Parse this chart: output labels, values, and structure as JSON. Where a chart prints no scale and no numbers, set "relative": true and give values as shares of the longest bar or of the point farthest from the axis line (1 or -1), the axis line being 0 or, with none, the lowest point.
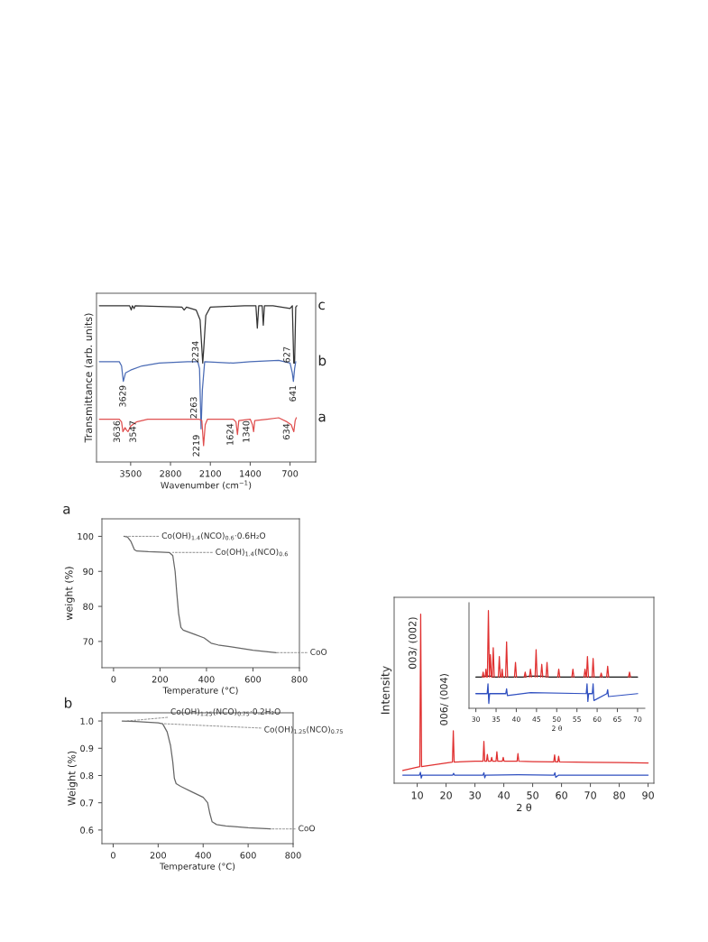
{
  "chart_data": [
    {
      "type": "line",
      "relative": true,
      "xlabel": "Wavenumber (cm$^{−1}$)",
      "ylabel": "Transmittance (arb. units)",
      "xlim": [
        4100,
        250
      ],
      "xticks": [
        3500,
        2800,
        2100,
        1400,
        700
      ],
      "tick_labels": "x",
      "series": [
        {
          "name": "c",
          "color": "#333333",
          "x": [
            4050,
            3520,
            3490,
            3470,
            3440,
            3420,
            2600,
            2560,
            2520,
            2350,
            2280,
            2250,
            2234,
            2215,
            2180,
            2100,
            1500,
            1300,
            1275,
            1250,
            1190,
            1170,
            1150,
            1000,
            700,
            660,
            635,
            620,
            600,
            580
          ],
          "values": [
            1.0,
            1.0,
            0.973,
            1.0,
            0.982,
            1.0,
            0.991,
            0.973,
            0.991,
            0.973,
            0.91,
            0.731,
            0.633,
            0.731,
            0.937,
            0.991,
            1.0,
            1.0,
            0.857,
            1.0,
            1.0,
            0.875,
            1.0,
            1.0,
            0.982,
            1.0,
            0.633,
            0.633,
            0.991,
            1.0
          ]
        },
        {
          "name": "b",
          "color": "#4a6bb5",
          "x": [
            4050,
            3700,
            3660,
            3629,
            3590,
            3500,
            3300,
            3000,
            2500,
            2320,
            2290,
            2263,
            2240,
            2200,
            1700,
            1400,
            900,
            700,
            660,
            641,
            620,
            600
          ],
          "values": [
            0.642,
            0.642,
            0.615,
            0.516,
            0.57,
            0.588,
            0.615,
            0.633,
            0.642,
            0.642,
            0.597,
            0.212,
            0.462,
            0.642,
            0.633,
            0.642,
            0.651,
            0.633,
            0.57,
            0.516,
            0.597,
            0.642
          ]
        },
        {
          "name": "a",
          "color": "#e05050",
          "x": [
            4050,
            3700,
            3660,
            3636,
            3600,
            3570,
            3547,
            3500,
            3400,
            3200,
            2300,
            2250,
            2219,
            2190,
            2150,
            1700,
            1650,
            1624,
            1600,
            1400,
            1360,
            1340,
            1320,
            1100,
            900,
            750,
            680,
            634,
            610,
            590
          ],
          "values": [
            0.274,
            0.274,
            0.256,
            0.194,
            0.22,
            0.203,
            0.194,
            0.229,
            0.256,
            0.274,
            0.274,
            0.265,
            0.104,
            0.238,
            0.274,
            0.274,
            0.256,
            0.176,
            0.265,
            0.274,
            0.238,
            0.194,
            0.265,
            0.274,
            0.283,
            0.256,
            0.238,
            0.194,
            0.265,
            0.283
          ]
        }
      ],
      "annotations": [
        {
          "text": "2234",
          "x": 2234,
          "y": 0.633
        },
        {
          "text": "627",
          "x": 627,
          "y": 0.633
        },
        {
          "text": "3629",
          "x": 3629,
          "y": 0.516
        },
        {
          "text": "2263",
          "x": 2263,
          "y": 0.212
        },
        {
          "text": "641",
          "x": 641,
          "y": 0.516
        },
        {
          "text": "3636",
          "x": 3636,
          "y": 0.194
        },
        {
          "text": "3547",
          "x": 3547,
          "y": 0.194
        },
        {
          "text": "2219",
          "x": 2219,
          "y": 0.104
        },
        {
          "text": "1624",
          "x": 1624,
          "y": 0.176
        },
        {
          "text": "1340",
          "x": 1340,
          "y": 0.194
        },
        {
          "text": "634",
          "x": 634,
          "y": 0.194
        }
      ]
    },
    {
      "type": "line",
      "title": "a",
      "xlabel": "Temperature (°C)",
      "ylabel": "weight (%)",
      "xlim": [
        -50,
        800
      ],
      "xticks": [
        0,
        200,
        400,
        600,
        800
      ],
      "ylim": [
        62.5,
        105
      ],
      "yticks": [
        70,
        80,
        90,
        100
      ],
      "series": [
        {
          "color": "#666666",
          "x": [
            45,
            60,
            75,
            90,
            100,
            150,
            200,
            240,
            255,
            265,
            272,
            280,
            290,
            300,
            350,
            390,
            420,
            450,
            500,
            600,
            700
          ],
          "values": [
            100,
            99.8,
            98.5,
            96.2,
            95.8,
            95.6,
            95.5,
            95.4,
            94.5,
            90,
            84,
            78,
            74,
            73.2,
            72,
            71,
            69.5,
            69,
            68.5,
            67.5,
            66.8
          ]
        }
      ],
      "annotations": [
        {
          "text": "Co(OH)$_{1.4}$(NCO)$_{0.6}$·0.6H₂O",
          "x": 45,
          "y": 100
        },
        {
          "text": "Co(OH)$_{1.4}$(NCO)$_{0.6}$",
          "x": 255,
          "y": 95.4
        },
        {
          "text": "CoO",
          "x": 700,
          "y": 66.8
        }
      ]
    },
    {
      "type": "line",
      "title": "b",
      "xlabel": "Temperature (°C)",
      "ylabel": "Weight (%)",
      "xlim": [
        -50,
        800
      ],
      "xticks": [
        0,
        200,
        400,
        600,
        800
      ],
      "ylim": [
        0.55,
        1.03
      ],
      "yticks": [
        0.6,
        0.7,
        0.8,
        0.9,
        {
          "value": 1.0,
          "label": "1.0"
        }
      ],
      "series": [
        {
          "color": "#666666",
          "x": [
            40,
            100,
            200,
            220,
            240,
            255,
            265,
            272,
            280,
            300,
            350,
            400,
            420,
            430,
            440,
            460,
            500,
            600,
            700
          ],
          "values": [
            1.0,
            0.998,
            0.993,
            0.99,
            0.96,
            0.91,
            0.85,
            0.79,
            0.77,
            0.76,
            0.74,
            0.72,
            0.7,
            0.66,
            0.63,
            0.62,
            0.615,
            0.608,
            0.604
          ]
        }
      ],
      "annotations": [
        {
          "text": "Co(OH)$_{1.25}$(NCO)$_{0.75}$·0.2H₂O",
          "x": 60,
          "y": 1.0
        },
        {
          "text": "Co(OH)$_{1.25}$(NCO)$_{0.75}$",
          "x": 225,
          "y": 0.99
        },
        {
          "text": "CoO",
          "x": 700,
          "y": 0.604
        }
      ]
    },
    {
      "type": "line",
      "relative": true,
      "xlabel": "2 θ",
      "ylabel": "Intensity",
      "xlim": [
        2,
        92
      ],
      "xticks": [
        10,
        20,
        30,
        40,
        50,
        60,
        70,
        80,
        90
      ],
      "tick_labels": "x",
      "series": [
        {
          "color": "#e03030",
          "x": [
            5,
            10.9,
            11.2,
            11.5,
            20,
            22.2,
            22.5,
            22.8,
            30,
            32.8,
            33.1,
            33.4,
            34.0,
            34.3,
            34.6,
            35.5,
            35.8,
            36.1,
            37.3,
            37.6,
            37.9,
            39.5,
            39.8,
            40.1,
            44.6,
            44.9,
            45.2,
            50,
            57.3,
            57.6,
            57.9,
            58.7,
            59.0,
            59.3,
            70,
            80,
            90
          ],
          "values": [
            0.076,
            0.098,
            1.0,
            0.098,
            0.12,
            0.125,
            0.31,
            0.125,
            0.13,
            0.13,
            0.247,
            0.13,
            0.13,
            0.17,
            0.13,
            0.13,
            0.153,
            0.13,
            0.13,
            0.186,
            0.13,
            0.13,
            0.153,
            0.13,
            0.13,
            0.175,
            0.13,
            0.128,
            0.126,
            0.168,
            0.126,
            0.126,
            0.16,
            0.126,
            0.124,
            0.122,
            0.12
          ]
        },
        {
          "color": "#3050c0",
          "x": [
            5,
            10.8,
            11.1,
            11.4,
            11.7,
            22.3,
            22.6,
            22.9,
            32.8,
            33.1,
            33.4,
            33.7,
            45,
            57.4,
            57.7,
            58,
            59,
            90
          ],
          "values": [
            0.048,
            0.048,
            0.065,
            0.03,
            0.048,
            0.048,
            0.058,
            0.048,
            0.048,
            0.062,
            0.032,
            0.048,
            0.05,
            0.048,
            0.062,
            0.035,
            0.048,
            0.048
          ]
        }
      ],
      "annotations": [
        {
          "text": "003/ (002)",
          "x": 11.2,
          "y": 1.0
        },
        {
          "text": "006/ (004)",
          "x": 22.5,
          "y": 0.31
        }
      ]
    },
    {
      "type": "line",
      "relative": true,
      "xlabel": "2 θ",
      "xlim": [
        28.3,
        71.8
      ],
      "xticks": [
        30,
        35,
        40,
        45,
        50,
        55,
        60,
        65,
        70
      ],
      "tick_labels": "x",
      "series": [
        {
          "color": "#111111",
          "x": [
            30,
            31.5,
            32.2,
            33.9,
            34.0,
            36.8,
            37.3,
            38.0,
            42.0,
            43.3,
            46.0,
            48.0,
            52.0,
            56.7,
            60.7,
            64.7,
            67.7,
            70
          ],
          "values": [
            0.32,
            0.32,
            0.33,
            0.33,
            0.32,
            0.32,
            0.32,
            0.32,
            0.32,
            0.33,
            0.33,
            0.32,
            0.32,
            0.32,
            0.32,
            0.32,
            0.32,
            0.32
          ]
        },
        {
          "color": "#e03030",
          "x": [
            31.6,
            31.8,
            32.0,
            32.1,
            32.3,
            32.5,
            32.7,
            32.8,
            32.85,
            33.1,
            33.35,
            33.6,
            33.85,
            33.9,
            34.05,
            34.3,
            34.55,
            34.6,
            35.55,
            35.8,
            36.05,
            36.1,
            36.3,
            36.5,
            36.7,
            36.8,
            37.35,
            37.6,
            37.85,
            37.9,
            39.55,
            39.8,
            40.05,
            40.1,
            41.95,
            42.2,
            42.45,
            42.5,
            43.25,
            43.5,
            43.75,
            43.8,
            44.65,
            44.9,
            45.15,
            45.2,
            46.05,
            46.3,
            46.55,
            46.6,
            47.35,
            47.6,
            47.85,
            47.9,
            50.25,
            50.5,
            50.75,
            50.8,
            53.75,
            54.0,
            54.25,
            54.3,
            56.75,
            57.0,
            57.25,
            57.3,
            57.35,
            57.6,
            57.85,
            57.9,
            58.75,
            59.0,
            59.25,
            59.3,
            60.75,
            61.0,
            61.25,
            61.3,
            62.35,
            62.6,
            62.85,
            62.9,
            67.75,
            68.0,
            68.25
          ],
          "values": [
            0.32,
            0.37,
            0.32,
            null,
            0.32,
            0.4,
            0.32,
            null,
            0.32,
            1.0,
            0.32,
            0.55,
            0.32,
            null,
            0.32,
            0.62,
            0.32,
            null,
            0.32,
            0.53,
            0.32,
            null,
            0.32,
            0.4,
            0.32,
            null,
            0.32,
            0.68,
            0.32,
            null,
            0.32,
            0.47,
            0.32,
            null,
            0.32,
            0.37,
            0.32,
            null,
            0.32,
            0.4,
            0.32,
            null,
            0.32,
            0.6,
            0.32,
            null,
            0.32,
            0.45,
            0.32,
            null,
            0.32,
            0.47,
            0.32,
            null,
            0.32,
            0.4,
            0.32,
            null,
            0.32,
            0.4,
            0.32,
            null,
            0.32,
            0.4,
            0.32,
            null,
            0.32,
            0.53,
            0.32,
            null,
            0.32,
            0.51,
            0.32,
            null,
            0.32,
            0.36,
            0.32,
            null,
            0.32,
            0.43,
            0.32,
            null,
            0.32,
            0.37,
            0.32
          ]
        },
        {
          "color": "#3050c0",
          "x": [
            30,
            32.8,
            33.0,
            33.2,
            33.4,
            37.4,
            37.6,
            37.8,
            43.5,
            57.3,
            57.5,
            57.7,
            57.9,
            58.8,
            59.0,
            59.2,
            62.4,
            62.6,
            62.8,
            70
          ],
          "values": [
            0.15,
            0.15,
            0.25,
            0.05,
            0.15,
            0.15,
            0.2,
            0.13,
            0.16,
            0.15,
            0.25,
            0.07,
            0.15,
            0.15,
            0.25,
            0.08,
            0.15,
            0.19,
            0.12,
            0.15
          ]
        }
      ]
    }
  ]
}
